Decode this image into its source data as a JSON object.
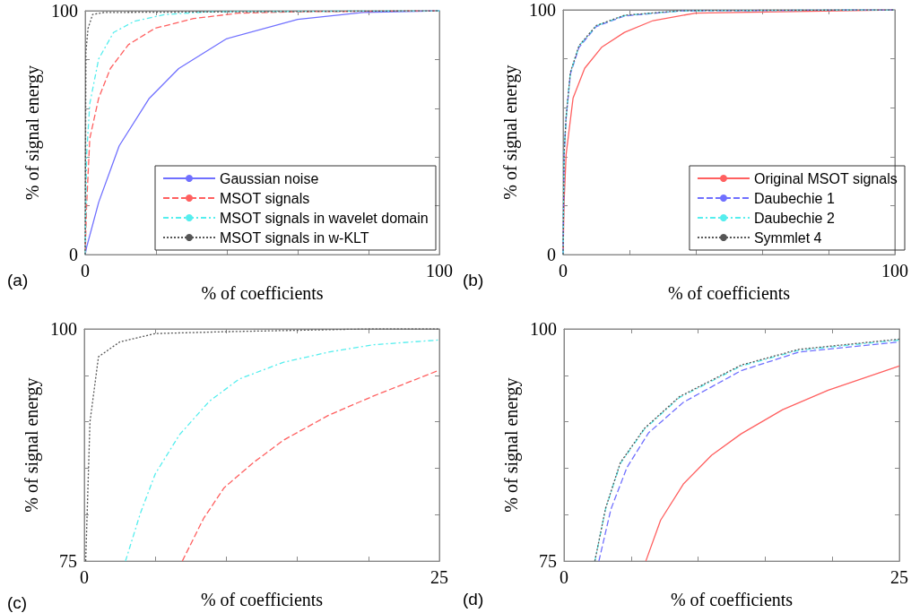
{
  "chart_data": [
    {
      "type": "line",
      "xlabel": "% of coefficients",
      "ylabel": "% of signal energy",
      "annotations": [
        "(a)"
      ],
      "legend": "bottom right",
      "xlim": [
        0,
        100
      ],
      "ylim": [
        0,
        100
      ],
      "xticks": [
        0,
        {
          "value": 20,
          "label": null
        },
        {
          "value": 40,
          "label": null
        },
        {
          "value": 60,
          "label": null
        },
        {
          "value": 80,
          "label": null
        },
        100
      ],
      "yticks": [
        0,
        {
          "value": 20,
          "label": null
        },
        {
          "value": 40,
          "label": null
        },
        {
          "value": 60,
          "label": null
        },
        {
          "value": 80,
          "label": null
        },
        100
      ],
      "series": [
        {
          "name": "Gaussian noise",
          "color": "#7070ff",
          "line_style": "solid",
          "x": [
            0,
            0.4,
            3.8,
            9.6,
            18.1,
            26.4,
            39.9,
            60,
            78.5,
            100
          ],
          "values": [
            0,
            3,
            21.4,
            44.6,
            64.1,
            76.3,
            88.5,
            96.5,
            99.3,
            100
          ]
        },
        {
          "name": "MSOT signals",
          "color": "#ff6060",
          "line_style": "dashed",
          "x": [
            0,
            0.4,
            1.3,
            3.8,
            7.1,
            12.2,
            19.7,
            30.6,
            43.2,
            60,
            100
          ],
          "values": [
            0,
            20.1,
            47.6,
            64.1,
            76.3,
            86.1,
            92.8,
            96.8,
            99,
            99.6,
            100
          ]
        },
        {
          "name": "MSOT signals in wavelet domain",
          "color": "#55eeee",
          "line_style": "dashdot",
          "x": [
            0,
            0.4,
            1.3,
            3.8,
            8,
            13.9,
            22.3,
            34.9,
            100
          ],
          "values": [
            0,
            40.9,
            61.9,
            80.2,
            91.1,
            95.7,
            98.4,
            99.6,
            100
          ]
        },
        {
          "name": "MSOT signals in w-KLT",
          "color": "#555555",
          "line_style": "dotted",
          "x": [
            0,
            0.2,
            0.8,
            2.1,
            5.4,
            100
          ],
          "values": [
            0,
            82.9,
            92.7,
            98.5,
            99.3,
            100
          ]
        }
      ]
    },
    {
      "type": "line",
      "xlabel": "% of coefficients",
      "ylabel": "% of signal energy",
      "annotations": [
        "(b)"
      ],
      "legend": "bottom right",
      "xlim": [
        0,
        100
      ],
      "ylim": [
        0,
        100
      ],
      "xticks": [
        0,
        {
          "value": 20,
          "label": null
        },
        {
          "value": 40,
          "label": null
        },
        {
          "value": 60,
          "label": null
        },
        {
          "value": 80,
          "label": null
        },
        100
      ],
      "yticks": [
        0,
        {
          "value": 20,
          "label": null
        },
        {
          "value": 40,
          "label": null
        },
        {
          "value": 60,
          "label": null
        },
        {
          "value": 80,
          "label": null
        },
        100
      ],
      "series": [
        {
          "name": "Original MSOT signals",
          "color": "#ff6060",
          "line_style": "solid",
          "x": [
            0,
            0.3,
            0.9,
            3,
            6.5,
            11.6,
            18.5,
            27.1,
            40,
            100
          ],
          "values": [
            0,
            21.3,
            40.8,
            63.9,
            76.1,
            84.7,
            90.8,
            95.6,
            98.7,
            100
          ]
        },
        {
          "name": "Daubechie 1",
          "color": "#7070ff",
          "line_style": "dashed",
          "x": [
            0,
            0.3,
            0.9,
            2.2,
            4.8,
            10,
            18.5,
            35.7,
            100
          ],
          "values": [
            0,
            40.8,
            55.5,
            73.8,
            84.7,
            93.2,
            97.5,
            99.6,
            100
          ]
        },
        {
          "name": "Daubechie 2",
          "color": "#55eeee",
          "line_style": "dashdot",
          "x": [
            0,
            0.3,
            0.9,
            2.2,
            4.8,
            10,
            18.5,
            35.7,
            100
          ],
          "values": [
            0,
            41,
            56,
            74.3,
            85.2,
            93.5,
            97.7,
            99.6,
            100
          ]
        },
        {
          "name": "Symmlet 4",
          "color": "#555555",
          "line_style": "dotted",
          "x": [
            0,
            0.3,
            0.9,
            2.2,
            4.8,
            10,
            18.5,
            35.7,
            100
          ],
          "values": [
            0,
            41.2,
            56.2,
            74.5,
            85.4,
            93.6,
            97.8,
            99.7,
            100
          ]
        }
      ]
    },
    {
      "type": "line",
      "xlabel": "% of coefficients",
      "ylabel": "% of signal energy",
      "annotations": [
        "(c)"
      ],
      "xlim": [
        0,
        25
      ],
      "ylim": [
        75,
        100
      ],
      "xticks": [
        0,
        {
          "value": 5,
          "label": null
        },
        {
          "value": 10,
          "label": null
        },
        {
          "value": 15,
          "label": null
        },
        {
          "value": 20,
          "label": null
        },
        25
      ],
      "yticks": [
        75,
        {
          "value": 80,
          "label": null
        },
        {
          "value": 85,
          "label": null
        },
        {
          "value": 90,
          "label": null
        },
        {
          "value": 95,
          "label": null
        },
        100
      ],
      "series": [
        {
          "color": "#ff6060",
          "line_style": "dashed",
          "x": [
            6.9,
            8.4,
            9.85,
            11.9,
            14,
            17.2,
            20.4,
            24.9
          ],
          "values": [
            75,
            79.6,
            82.9,
            85.6,
            88,
            90.7,
            92.8,
            95.5
          ]
        },
        {
          "color": "#55eeee",
          "line_style": "dashdot",
          "x": [
            2.9,
            3.96,
            5,
            6.7,
            8.8,
            10.9,
            14,
            17.2,
            20.4,
            24.9
          ],
          "values": [
            75,
            80.2,
            84.4,
            88.6,
            92.2,
            94.6,
            96.4,
            97.5,
            98.3,
            98.8
          ]
        },
        {
          "color": "#555555",
          "line_style": "dotted",
          "x": [
            0.1,
            0.4,
            1,
            2.5,
            5,
            10,
            20,
            25
          ],
          "values": [
            75,
            90,
            97,
            98.6,
            99.5,
            99.7,
            100,
            100
          ]
        }
      ]
    },
    {
      "type": "line",
      "xlabel": "% of coefficients",
      "ylabel": "% of signal energy",
      "annotations": [
        "(d)"
      ],
      "xlim": [
        0,
        25
      ],
      "ylim": [
        75,
        100
      ],
      "xticks": [
        0,
        {
          "value": 5,
          "label": null
        },
        {
          "value": 10,
          "label": null
        },
        {
          "value": 15,
          "label": null
        },
        {
          "value": 20,
          "label": null
        },
        25
      ],
      "yticks": [
        75,
        {
          "value": 80,
          "label": null
        },
        {
          "value": 85,
          "label": null
        },
        {
          "value": 90,
          "label": null
        },
        {
          "value": 95,
          "label": null
        },
        100
      ],
      "series": [
        {
          "color": "#ff6060",
          "line_style": "solid",
          "x": [
            6.1,
            7.2,
            8.9,
            11,
            13.2,
            16.3,
            19.7,
            25
          ],
          "values": [
            75,
            79.4,
            83.3,
            86.4,
            88.7,
            91.3,
            93.4,
            96
          ]
        },
        {
          "color": "#7070ff",
          "line_style": "dashed",
          "x": [
            2.6,
            3.5,
            4.7,
            6.3,
            8.9,
            13.2,
            17.5,
            25
          ],
          "values": [
            75,
            80.6,
            85.1,
            88.8,
            92.1,
            95.5,
            97.5,
            98.6
          ]
        },
        {
          "color": "#55eeee",
          "line_style": "dashdot",
          "x": [
            2.3,
            3.1,
            4.2,
            6,
            8.6,
            13.2,
            17.5,
            25
          ],
          "values": [
            75,
            80.6,
            85.5,
            89.2,
            92.6,
            96,
            97.7,
            98.8
          ]
        },
        {
          "color": "#555555",
          "line_style": "dotted",
          "x": [
            2.3,
            3.1,
            4.2,
            6,
            8.6,
            13.2,
            17.5,
            25
          ],
          "values": [
            75,
            80.7,
            85.6,
            89.3,
            92.7,
            96.1,
            97.8,
            98.9
          ]
        }
      ]
    }
  ]
}
